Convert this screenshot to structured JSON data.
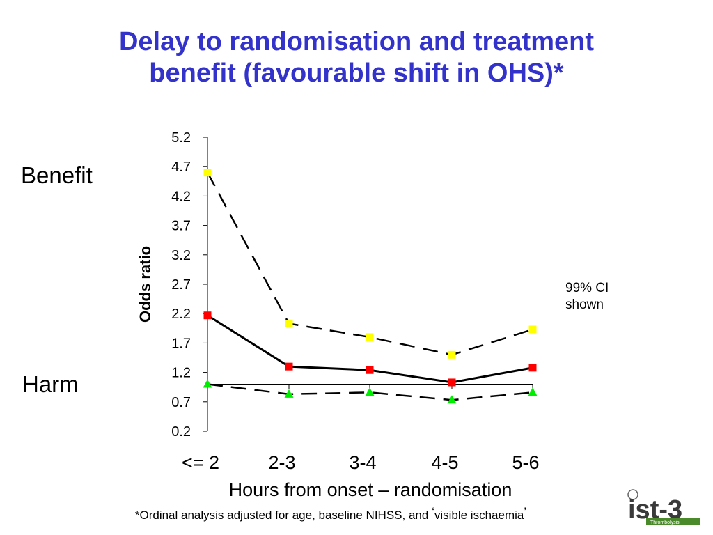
{
  "title": {
    "line1": "Delay to randomisation and treatment",
    "line2": "benefit (favourable shift in OHS)*"
  },
  "labels": {
    "benefit": "Benefit",
    "harm": "Harm",
    "note_line1": "99% CI",
    "note_line2": "shown",
    "footnote_prefix": "*Ordinal analysis adjusted for age, baseline NIHSS, and",
    "footnote_quote_open": "‘",
    "footnote_quoted": "visible ischaemia",
    "footnote_quote_close": "’"
  },
  "logo": {
    "text": "ist-3",
    "subtext": "Thrombolysis",
    "color_dark": "#3a3a3a",
    "color_green": "#4a8a2a"
  },
  "colors": {
    "title": "#3333cc",
    "upper_marker": "#ffff00",
    "estimate_marker": "#ff0000",
    "lower_marker": "#00ee00",
    "line": "#000000"
  },
  "chart_data": {
    "type": "line",
    "categories": [
      "<= 2",
      "2-3",
      "3-4",
      "4-5",
      "5-6"
    ],
    "xlabel": "Hours from onset – randomisation",
    "ylabel": "Odds ratio",
    "ylim": [
      0.2,
      5.2
    ],
    "yticks": [
      "5.2",
      "4.7",
      "4.2",
      "3.7",
      "3.2",
      "2.7",
      "2.2",
      "1.7",
      "1.2",
      "0.7",
      "0.2"
    ],
    "reference_line": 1.0,
    "series": [
      {
        "key": "upper",
        "values": [
          4.6,
          2.03,
          1.8,
          1.5,
          1.93
        ],
        "style": "dashed",
        "marker": "square"
      },
      {
        "key": "estimate",
        "values": [
          2.17,
          1.3,
          1.24,
          1.03,
          1.28
        ],
        "style": "solid",
        "marker": "square"
      },
      {
        "key": "lower",
        "values": [
          1.0,
          0.83,
          0.86,
          0.73,
          0.86
        ],
        "style": "dashed",
        "marker": "triangle"
      }
    ]
  }
}
